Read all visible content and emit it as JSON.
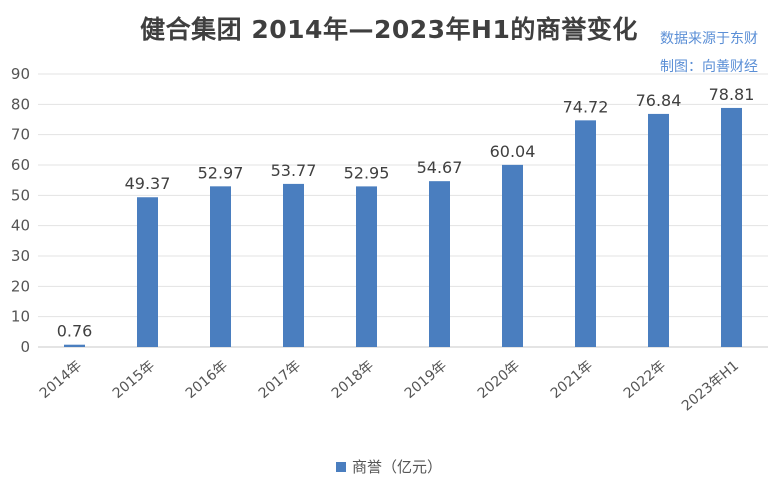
{
  "chart_data": {
    "type": "bar",
    "title": "健合集团 2014年—2023年H1的商誉变化",
    "categories": [
      "2014年",
      "2015年",
      "2016年",
      "2017年",
      "2018年",
      "2019年",
      "2020年",
      "2021年",
      "2022年",
      "2023年H1"
    ],
    "series": [
      {
        "name": "商誉（亿元）",
        "values": [
          0.76,
          49.37,
          52.97,
          53.77,
          52.95,
          54.67,
          60.04,
          74.72,
          76.84,
          78.81
        ]
      }
    ],
    "data_labels": [
      "0.76",
      "49.37",
      "52.97",
      "53.77",
      "52.95",
      "54.67",
      "60.04",
      "74.72",
      "76.84",
      "78.81"
    ],
    "y_ticks": [
      "0",
      "10",
      "20",
      "30",
      "40",
      "50",
      "60",
      "70",
      "80",
      "90"
    ],
    "ylim": [
      0,
      90
    ],
    "grid": true,
    "legend_position": "bottom",
    "bar_color": "#4a7ebf",
    "source_lines": [
      "数据来源于东财",
      "制图：向善财经"
    ]
  }
}
